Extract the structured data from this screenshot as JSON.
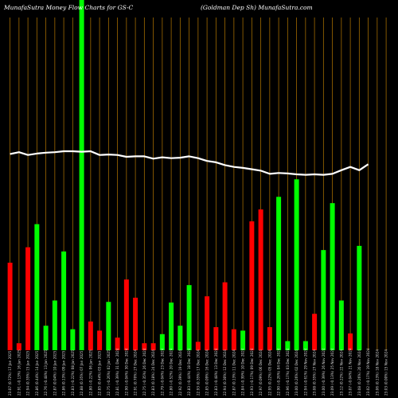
{
  "header": {
    "left": "MunafaSutra  Money Flow  Charts for GS-C",
    "right": "(Goldman  Dep Sh) MunafaSutra.com"
  },
  "chart_data": {
    "type": "bar",
    "title": "MunafaSutra  Money Flow  Charts for GS-C",
    "subtitle": "(Goldman  Dep Sh) MunafaSutra.com",
    "xlabel": "",
    "ylabel": "",
    "grid": "vertical",
    "colors": {
      "up": "#00ff00",
      "down": "#ff0000",
      "line": "#ffffff",
      "grid": "#a06a00",
      "background": "#000000"
    },
    "categories": [
      "Fri 17 Jan 2025",
      "Thu 16 Jan 2025",
      "Wed 15 Jan 2025",
      "Tue 14 Jan 2025",
      "Mon 13 Jan 2025",
      "Fri 10 Jan 2025",
      "Thu 09 Jan 2025",
      "Wed 08 Jan 2025",
      "Tue 07 Jan 2025",
      "Mon 06 Jan 2025",
      "Fri 03 Jan 2025",
      "Thu 02 Jan 2025",
      "Tue 31 Dec 2024",
      "Mon 30 Dec 2024",
      "Fri 27 Dec 2024",
      "Thu 26 Dec 2024",
      "Tue 24 Dec 2024",
      "Mon 23 Dec 2024",
      "Fri 20 Dec 2024",
      "Thu 19 Dec 2024",
      "Wed 18 Dec 2024",
      "Tue 17 Dec 2024",
      "Mon 16 Dec 2024",
      "Fri 13 Dec 2024",
      "Thu 12 Dec 2024",
      "Wed 11 Dec 2024",
      "Tue 10 Dec 2024",
      "Mon 09 Dec 2024",
      "Fri 06 Dec 2024",
      "Thu 05 Dec 2024",
      "Wed 04 Dec 2024",
      "Tue 03 Dec 2024",
      "Mon 02 Dec 2024",
      "Fri 29 Nov 2024",
      "Wed 27 Nov 2024",
      "Tue 26 Nov 2024",
      "Mon 25 Nov 2024",
      "Fri 22 Nov 2024",
      "Thu 21 Nov 2024",
      "Wed 20 Nov 2024",
      "Tue 19 Nov 2024",
      "Mon 18 Nov 2024",
      "Fri 15 Nov 2024"
    ],
    "tick_labels": [
      "23.07 (0.72%) 17 Jan 2025",
      "22.91 (-0.13%) 16 Jan 2025",
      "22.94 (0.35%) 15 Jan 2025",
      "22.86 (0.44%) 14 Jan 2025",
      "22.76 (-0.48%) 13 Jan 2025",
      "22.87 (0.04%) 10 Jan 2025",
      "22.86 (0.13%) 09 Jan 2025",
      "22.83 (-0.22%) 08 Jan 2025",
      "22.88 (0.35%) 07 Jan 2025",
      "22.80 (-0.22%) 06 Jan 2025",
      "22.85 (0.44%) 03 Jan 2025",
      "22.75 (-0.26%) 02 Jan 2025",
      "22.81 (-0.39%) 31 Dec 2024",
      "22.90 (-0.04%) 30 Dec 2024",
      "22.91 (0.70%) 27 Dec 2024",
      "22.75 (-0.35%) 26 Dec 2024",
      "22.83 (0.18%) 24 Dec 2024",
      "22.79 (-0.04%) 23 Dec 2024",
      "22.80 (-0.52%) 20 Dec 2024",
      "22.92 (0.39%) 19 Dec 2024",
      "22.83 (-0.44%) 18 Dec 2024",
      "22.93 (0.35%) 17 Dec 2024",
      "22.85 (0.09%) 16 Dec 2024",
      "22.83 (-0.48%) 13 Dec 2024",
      "22.94 (0.30%) 12 Dec 2024",
      "22.87 (0.13%) 11 Dec 2024",
      "22.84 (-0.39%) 10 Dec 2024",
      "22.93 (-0.17%) 09 Dec 2024",
      "22.97 (0.09%) 06 Dec 2024",
      "22.95 (0.22%) 05 Dec 2024",
      "22.90 (-0.26%) 04 Dec 2024",
      "22.96 (-0.17%) 03 Dec 2024",
      "23.00 (0.26%) 02 Dec 2024",
      "22.94 (-0.61%) 29 Nov 2024",
      "23.08 (0.35%) 27 Nov 2024",
      "23.00 (-0.39%) 26 Nov 2024",
      "23.09 (-0.13%) 25 Nov 2024",
      "23.12 (0.22%) 22 Nov 2024",
      "23.07 (-0.04%) 21 Nov 2024",
      "23.08 (0.26%) 20 Nov 2024",
      "23.02 (-0.17%) 19 Nov 2024",
      "23.06 (0.13%) 18 Nov 2024",
      "23.03 (0.00%) 15 Nov 2024"
    ],
    "flow": [
      -125,
      -10,
      -147,
      180,
      35,
      71,
      141,
      30,
      500,
      -41,
      -28,
      69,
      -18,
      -101,
      -75,
      -10,
      -10,
      23,
      68,
      35,
      93,
      -12,
      -77,
      -33,
      -97,
      -30,
      28,
      -184,
      -201,
      -33,
      219,
      13,
      244,
      13,
      -52,
      143,
      210,
      71,
      -24,
      149,
      0,
      0,
      0
    ],
    "money_flow_line": [
      42.5,
      42.9,
      42.3,
      42.6,
      42.8,
      42.9,
      43.1,
      43.1,
      43.0,
      43.1,
      42.3,
      42.4,
      42.3,
      41.9,
      42.0,
      42.0,
      41.5,
      41.8,
      41.6,
      41.7,
      42.0,
      41.6,
      41.0,
      40.7,
      40.1,
      39.7,
      39.5,
      39.2,
      38.9,
      38.2,
      38.4,
      38.3,
      38.1,
      38.0,
      38.1,
      38.0,
      38.2,
      39.0,
      39.7,
      39.0,
      40.3,
      0,
      0
    ]
  }
}
